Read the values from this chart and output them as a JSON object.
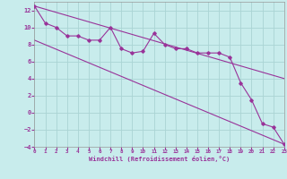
{
  "xlabel": "Windchill (Refroidissement éolien,°C)",
  "bg_color": "#c8ecec",
  "grid_color": "#aad4d4",
  "line_color": "#993399",
  "xlim": [
    0,
    23
  ],
  "ylim": [
    -4,
    13
  ],
  "yticks": [
    -4,
    -2,
    0,
    2,
    4,
    6,
    8,
    10,
    12
  ],
  "xticks": [
    0,
    1,
    2,
    3,
    4,
    5,
    6,
    7,
    8,
    9,
    10,
    11,
    12,
    13,
    14,
    15,
    16,
    17,
    18,
    19,
    20,
    21,
    22,
    23
  ],
  "data_x": [
    0,
    1,
    2,
    3,
    4,
    5,
    6,
    7,
    8,
    9,
    10,
    11,
    12,
    13,
    14,
    15,
    16,
    17,
    18,
    19,
    20,
    21,
    22,
    23
  ],
  "data_y": [
    12.5,
    10.5,
    10.0,
    9.0,
    9.0,
    8.5,
    8.5,
    10.0,
    7.5,
    7.0,
    7.2,
    9.3,
    8.0,
    7.5,
    7.5,
    7.0,
    7.0,
    7.0,
    6.5,
    3.5,
    1.5,
    -1.3,
    -1.7,
    -3.7
  ],
  "upper_line_x": [
    0,
    23
  ],
  "upper_line_y": [
    12.5,
    4.0
  ],
  "lower_line_x": [
    0,
    23
  ],
  "lower_line_y": [
    8.5,
    -3.7
  ],
  "label_color": "#993399",
  "tick_color": "#993399"
}
